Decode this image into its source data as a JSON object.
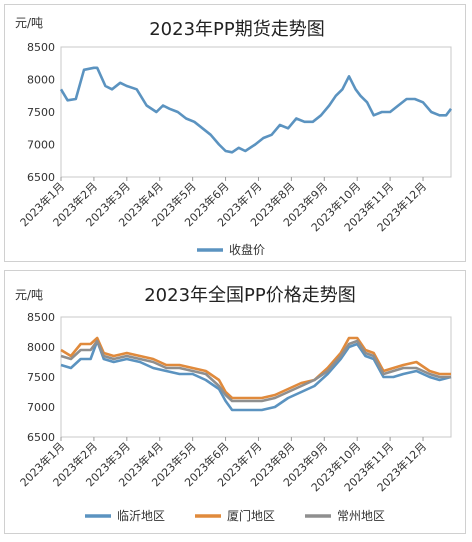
{
  "chart_data": [
    {
      "type": "line",
      "title": "2023年PP期货走势图",
      "unit_label": "元/吨",
      "ylim": [
        6500,
        8500
      ],
      "yticks": [
        6500,
        7000,
        7500,
        8000,
        8500
      ],
      "x_tick_labels": [
        "2023年1月",
        "2023年2月",
        "2023年3月",
        "2023年4月",
        "2023年5月",
        "2023年6月",
        "2023年7月",
        "2023年8月",
        "2023年9月",
        "2023年10月",
        "2023年11月",
        "2023年12月"
      ],
      "legend_position": "bottom",
      "grid": false,
      "series": [
        {
          "name": "收盘价",
          "color": "#5b93c0",
          "x": [
            0.0,
            0.2,
            0.45,
            0.7,
            1.0,
            1.1,
            1.35,
            1.55,
            1.8,
            2.0,
            2.3,
            2.6,
            2.9,
            3.1,
            3.3,
            3.55,
            3.8,
            4.05,
            4.3,
            4.55,
            4.8,
            5.0,
            5.2,
            5.4,
            5.6,
            5.9,
            6.15,
            6.4,
            6.65,
            6.9,
            7.15,
            7.4,
            7.65,
            7.9,
            8.15,
            8.35,
            8.55,
            8.75,
            8.95,
            9.1,
            9.3,
            9.5,
            9.75,
            10.0,
            10.25,
            10.5,
            10.75,
            11.0,
            11.25,
            11.5,
            11.7,
            11.85
          ],
          "values": [
            7850,
            7680,
            7700,
            8150,
            8180,
            8180,
            7900,
            7850,
            7950,
            7900,
            7850,
            7600,
            7500,
            7600,
            7550,
            7500,
            7400,
            7350,
            7250,
            7150,
            7000,
            6900,
            6880,
            6950,
            6900,
            7000,
            7100,
            7150,
            7300,
            7250,
            7400,
            7350,
            7350,
            7450,
            7600,
            7750,
            7850,
            8050,
            7850,
            7750,
            7650,
            7450,
            7500,
            7500,
            7600,
            7700,
            7700,
            7650,
            7500,
            7450,
            7450,
            7550
          ]
        }
      ]
    },
    {
      "type": "line",
      "title": "2023年全国PP价格走势图",
      "unit_label": "元/吨",
      "ylim": [
        6500,
        8500
      ],
      "yticks": [
        6500,
        7000,
        7500,
        8000,
        8500
      ],
      "x_tick_labels": [
        "2023年1月",
        "2023年2月",
        "2023年3月",
        "2023年4月",
        "2023年5月",
        "2023年6月",
        "2023年7月",
        "2023年8月",
        "2023年9月",
        "2023年10月",
        "2023年11月",
        "2023年12月"
      ],
      "legend_position": "bottom",
      "grid": false,
      "series": [
        {
          "name": "临沂地区",
          "color": "#5b93c0",
          "x": [
            0.0,
            0.3,
            0.6,
            0.9,
            1.1,
            1.3,
            1.6,
            2.0,
            2.4,
            2.8,
            3.2,
            3.6,
            4.0,
            4.4,
            4.8,
            5.0,
            5.2,
            5.5,
            5.8,
            6.1,
            6.5,
            6.9,
            7.3,
            7.7,
            8.1,
            8.5,
            8.75,
            9.0,
            9.25,
            9.5,
            9.8,
            10.1,
            10.4,
            10.8,
            11.2,
            11.5,
            11.85
          ],
          "values": [
            7700,
            7650,
            7800,
            7800,
            8100,
            7800,
            7750,
            7800,
            7750,
            7650,
            7600,
            7550,
            7550,
            7450,
            7300,
            7100,
            6950,
            6950,
            6950,
            6950,
            7000,
            7150,
            7250,
            7350,
            7550,
            7800,
            8000,
            8050,
            7850,
            7800,
            7500,
            7500,
            7550,
            7600,
            7500,
            7450,
            7500
          ]
        },
        {
          "name": "厦门地区",
          "color": "#e08a3c",
          "x": [
            0.0,
            0.3,
            0.6,
            0.9,
            1.1,
            1.3,
            1.6,
            2.0,
            2.4,
            2.8,
            3.2,
            3.6,
            4.0,
            4.4,
            4.8,
            5.0,
            5.2,
            5.5,
            5.8,
            6.1,
            6.5,
            6.9,
            7.3,
            7.7,
            8.1,
            8.5,
            8.75,
            9.0,
            9.25,
            9.5,
            9.8,
            10.1,
            10.4,
            10.8,
            11.2,
            11.5,
            11.85
          ],
          "values": [
            7950,
            7850,
            8050,
            8050,
            8150,
            7900,
            7850,
            7900,
            7850,
            7800,
            7700,
            7700,
            7650,
            7600,
            7450,
            7250,
            7150,
            7150,
            7150,
            7150,
            7200,
            7300,
            7400,
            7450,
            7650,
            7900,
            8150,
            8150,
            7950,
            7900,
            7600,
            7650,
            7700,
            7750,
            7600,
            7550,
            7550
          ]
        },
        {
          "name": "常州地区",
          "color": "#8f8f8f",
          "x": [
            0.0,
            0.3,
            0.6,
            0.9,
            1.1,
            1.3,
            1.6,
            2.0,
            2.4,
            2.8,
            3.2,
            3.6,
            4.0,
            4.4,
            4.8,
            5.0,
            5.2,
            5.5,
            5.8,
            6.1,
            6.5,
            6.9,
            7.3,
            7.7,
            8.1,
            8.5,
            8.75,
            9.0,
            9.25,
            9.5,
            9.8,
            10.1,
            10.4,
            10.8,
            11.2,
            11.5,
            11.85
          ],
          "values": [
            7850,
            7800,
            7950,
            7950,
            8100,
            7850,
            7800,
            7850,
            7800,
            7750,
            7650,
            7650,
            7600,
            7550,
            7350,
            7200,
            7100,
            7100,
            7100,
            7100,
            7150,
            7250,
            7350,
            7450,
            7600,
            7850,
            8050,
            8100,
            7900,
            7850,
            7550,
            7600,
            7650,
            7650,
            7550,
            7500,
            7500
          ]
        }
      ]
    }
  ]
}
